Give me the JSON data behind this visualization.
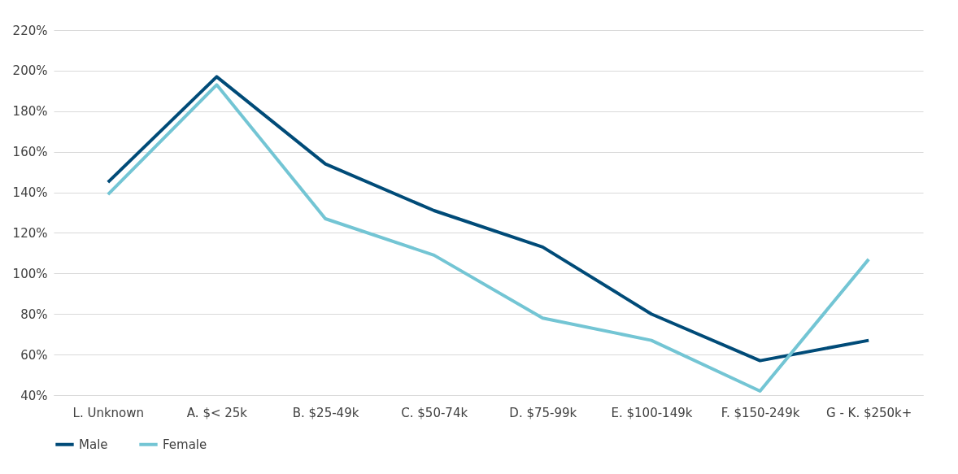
{
  "chart_data": {
    "type": "line",
    "categories": [
      "L. Unknown",
      "A. $< 25k",
      "B. $25-49k",
      "C. $50-74k",
      "D. $75-99k",
      "E. $100-149k",
      "F. $150-249k",
      "G - K. $250k+"
    ],
    "series": [
      {
        "name": "Male",
        "color": "#004b78",
        "values": [
          145,
          197,
          154,
          131,
          113,
          80,
          57,
          67
        ]
      },
      {
        "name": "Female",
        "color": "#73c5d4",
        "values": [
          139,
          193,
          127,
          109,
          78,
          67,
          42,
          107
        ]
      }
    ],
    "ylim": [
      40,
      220
    ],
    "yticks": [
      {
        "value": 40,
        "label": "40%"
      },
      {
        "value": 60,
        "label": "60%"
      },
      {
        "value": 80,
        "label": "80%"
      },
      {
        "value": 100,
        "label": "100%"
      },
      {
        "value": 120,
        "label": "120%"
      },
      {
        "value": 140,
        "label": "140%"
      },
      {
        "value": 160,
        "label": "160%"
      },
      {
        "value": 180,
        "label": "180%"
      },
      {
        "value": 200,
        "label": "200%"
      },
      {
        "value": 220,
        "label": "220%"
      }
    ],
    "grid": "y",
    "legend": "bottom",
    "marker": "none",
    "line_style": "solid"
  }
}
